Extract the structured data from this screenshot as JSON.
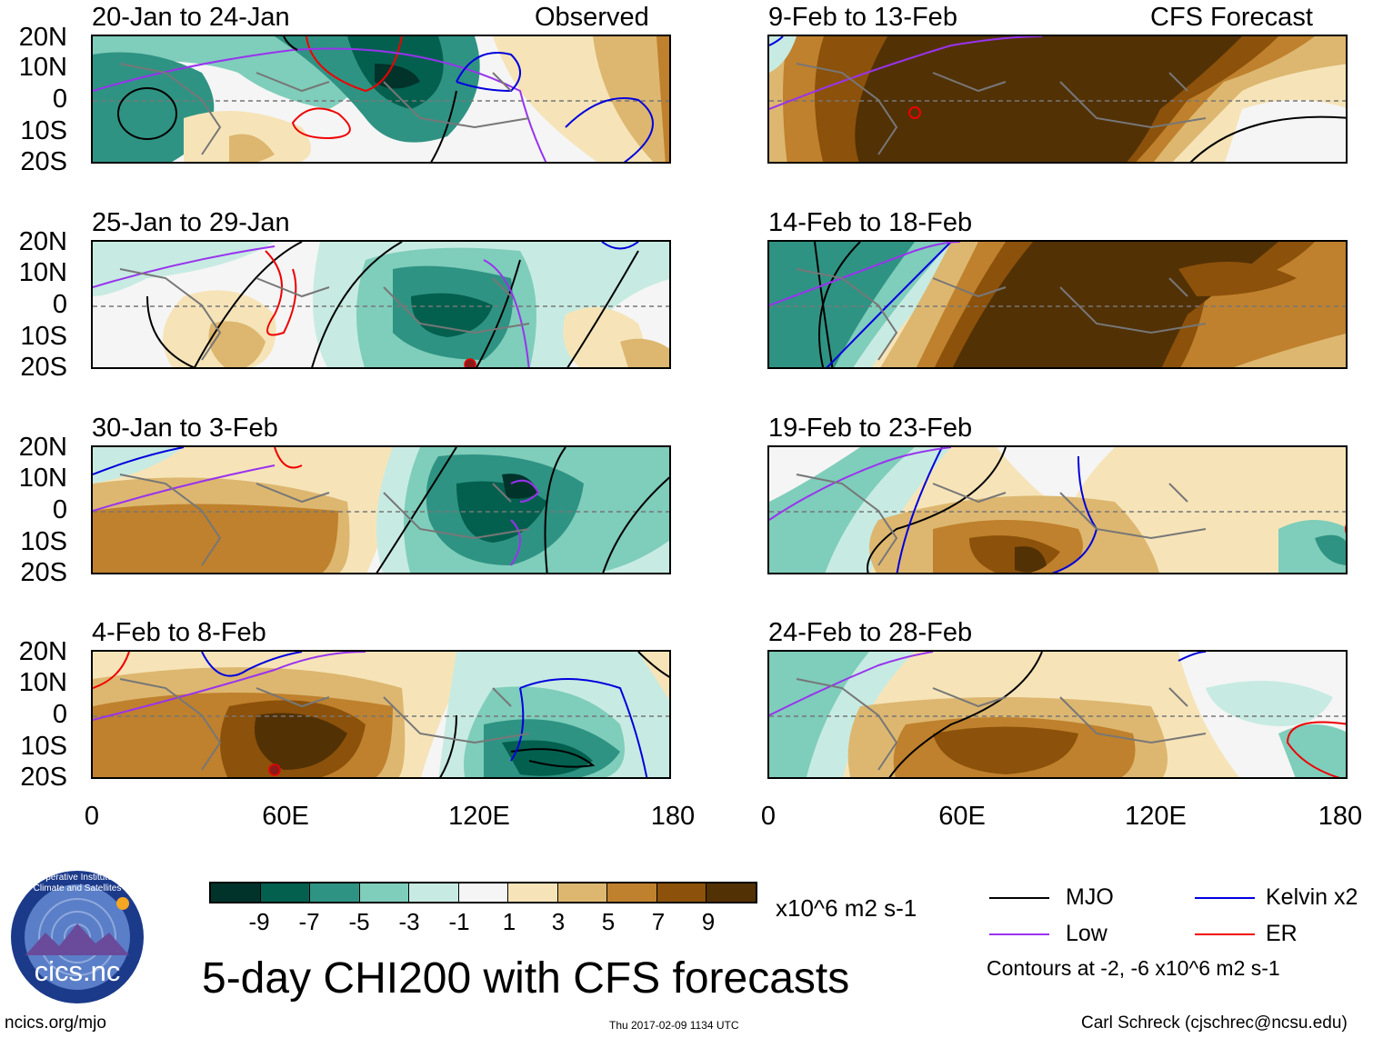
{
  "title": "5-day CHI200 with CFS forecasts",
  "labels": {
    "observed": "Observed",
    "forecast": "CFS Forecast"
  },
  "lat_labels": [
    "20N",
    "10N",
    "0",
    "10S",
    "20S"
  ],
  "lon_labels": [
    "0",
    "60E",
    "120E",
    "180"
  ],
  "panels": {
    "obs": [
      {
        "title": "20-Jan to 24-Jan"
      },
      {
        "title": "25-Jan to 29-Jan"
      },
      {
        "title": "30-Jan to 3-Feb"
      },
      {
        "title": "4-Feb to 8-Feb"
      }
    ],
    "fcst": [
      {
        "title": "9-Feb to 13-Feb"
      },
      {
        "title": "14-Feb to 18-Feb"
      },
      {
        "title": "19-Feb to 23-Feb"
      },
      {
        "title": "24-Feb to 28-Feb"
      }
    ]
  },
  "colorbar": {
    "labels": [
      "-9",
      "-7",
      "-5",
      "-3",
      "-1",
      "1",
      "3",
      "5",
      "7",
      "9"
    ],
    "units": "x10^6 m2 s-1",
    "colors": [
      "#01332b",
      "#03604f",
      "#2f9383",
      "#7fcdbb",
      "#c7ebe2",
      "#f5f5f5",
      "#f6e4b8",
      "#ddb770",
      "#bf812d",
      "#8c510a",
      "#523105"
    ]
  },
  "legend": {
    "mjo": "MJO",
    "kelvin": "Kelvin x2",
    "low": "Low",
    "er": "ER",
    "contours": "Contours at -2, -6 x10^6 m2 s-1",
    "colors": {
      "mjo": "#000000",
      "kelvin": "#0000dd",
      "low": "#9933ee",
      "er": "#ee0000"
    }
  },
  "footer": {
    "url": "ncics.org/mjo",
    "timestamp": "Thu 2017-02-09 1134 UTC",
    "author": "Carl Schreck (cjschrec@ncsu.edu)"
  },
  "logo": {
    "text": "cics.nc",
    "ring": "Cooperative Institute for Climate and Satellites"
  }
}
